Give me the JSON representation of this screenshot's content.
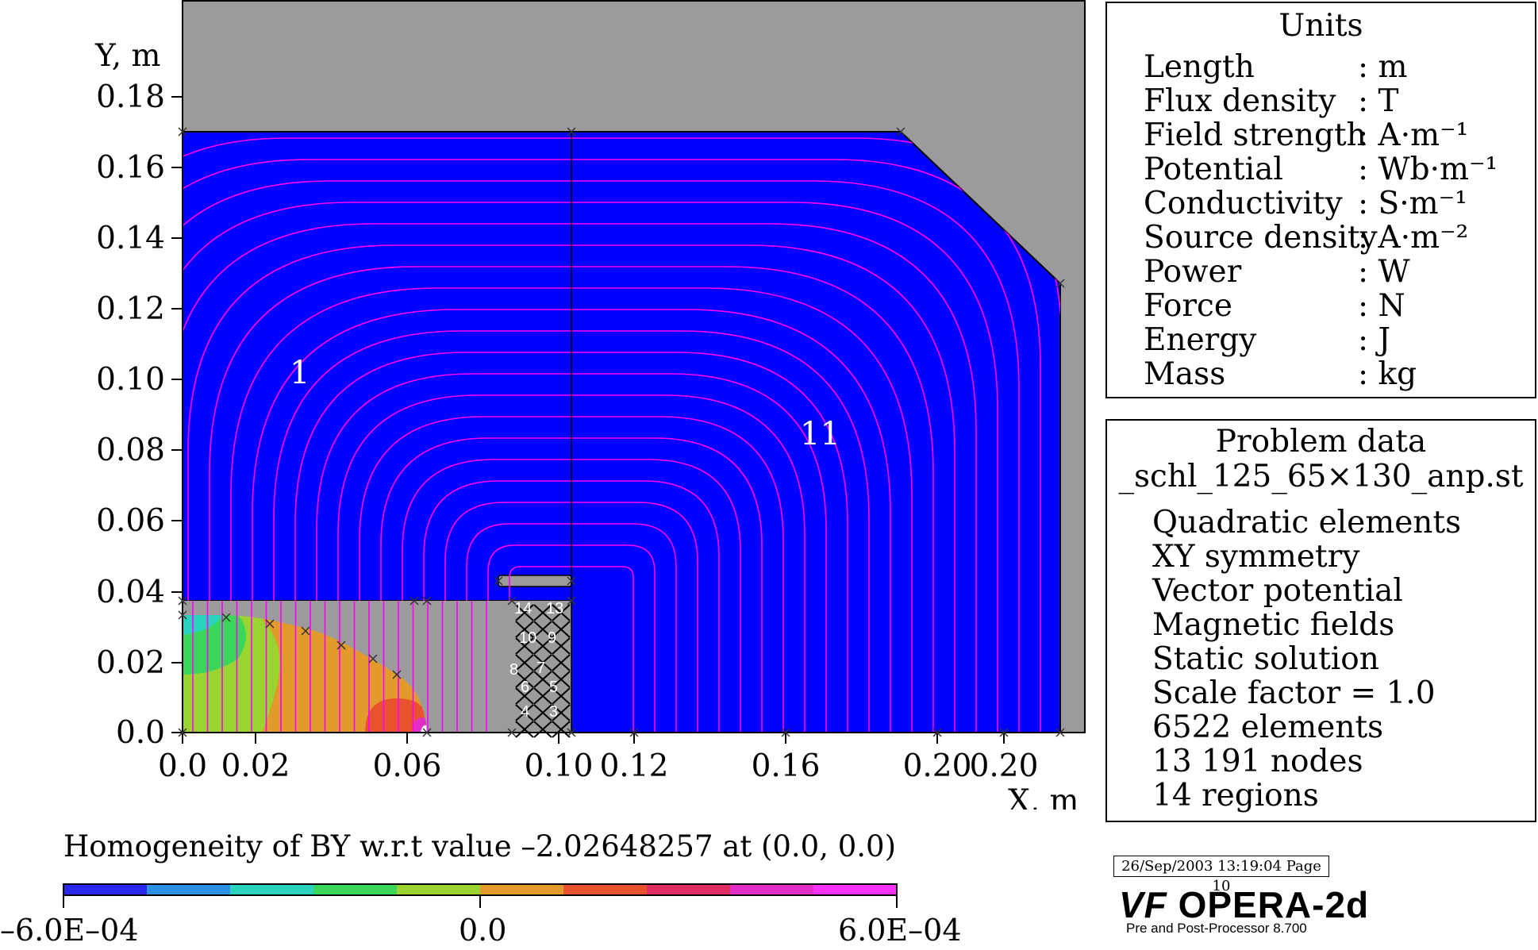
{
  "plot": {
    "y_axis_label": "Y, m",
    "x_axis_label": "X, m",
    "y_ticks": [
      "0.18",
      "0.16",
      "0.14",
      "0.12",
      "0.10",
      "0.08",
      "0.06",
      "0.04",
      "0.02",
      "0.0"
    ],
    "x_ticks": [
      "0.0",
      "0.02",
      "0.06",
      "0.10",
      "0.12",
      "0.16",
      "0.20",
      "0.20"
    ],
    "contour_labels": [
      "1",
      "11"
    ],
    "region_numbers": [
      "14",
      "13",
      "10",
      "9",
      "8",
      "7",
      "6",
      "5",
      "4",
      "3"
    ],
    "colors": {
      "background_gray": "#9c9a9c",
      "region_blue": "#0000ff",
      "flux_lines": "#ff00ff"
    }
  },
  "units": {
    "title": "Units",
    "rows": [
      {
        "name": "Length",
        "value": ": m"
      },
      {
        "name": "Flux density",
        "value": ": T"
      },
      {
        "name": "Field strength",
        "value": ": A·m⁻¹"
      },
      {
        "name": "Potential",
        "value": ": Wb·m⁻¹"
      },
      {
        "name": "Conductivity",
        "value": ": S·m⁻¹"
      },
      {
        "name": "Source density",
        "value": ": A·m⁻²"
      },
      {
        "name": "Power",
        "value": ": W"
      },
      {
        "name": "Force",
        "value": ": N"
      },
      {
        "name": "Energy",
        "value": ": J"
      },
      {
        "name": "Mass",
        "value": ": kg"
      }
    ]
  },
  "problem": {
    "title": "Problem data",
    "file": "_schl_125_65×130_anp.st",
    "rows": [
      "Quadratic elements",
      "XY symmetry",
      "Vector potential",
      "Magnetic fields",
      "Static solution",
      "Scale factor = 1.0",
      "6522 elements",
      "13 191 nodes",
      "14 regions"
    ]
  },
  "scale": {
    "title": "Homogeneity of BY w.r.t value –2.02648257 at (0.0, 0.0)",
    "min_label": "–6.0E–04",
    "mid_label": "0.0",
    "max_label": "6.0E–04",
    "colors": [
      "#2828ee",
      "#2d8fe6",
      "#29d3bf",
      "#3ad65c",
      "#9bd430",
      "#e19a2b",
      "#e8522c",
      "#df2c63",
      "#e22ec6",
      "#ff33ff"
    ]
  },
  "footer": {
    "stamp": "26/Sep/2003 13:19:04 Page 10",
    "logo": "OPERA-2d",
    "logo_mark": "VF",
    "subtitle": "Pre and Post-Processor 8.700"
  }
}
